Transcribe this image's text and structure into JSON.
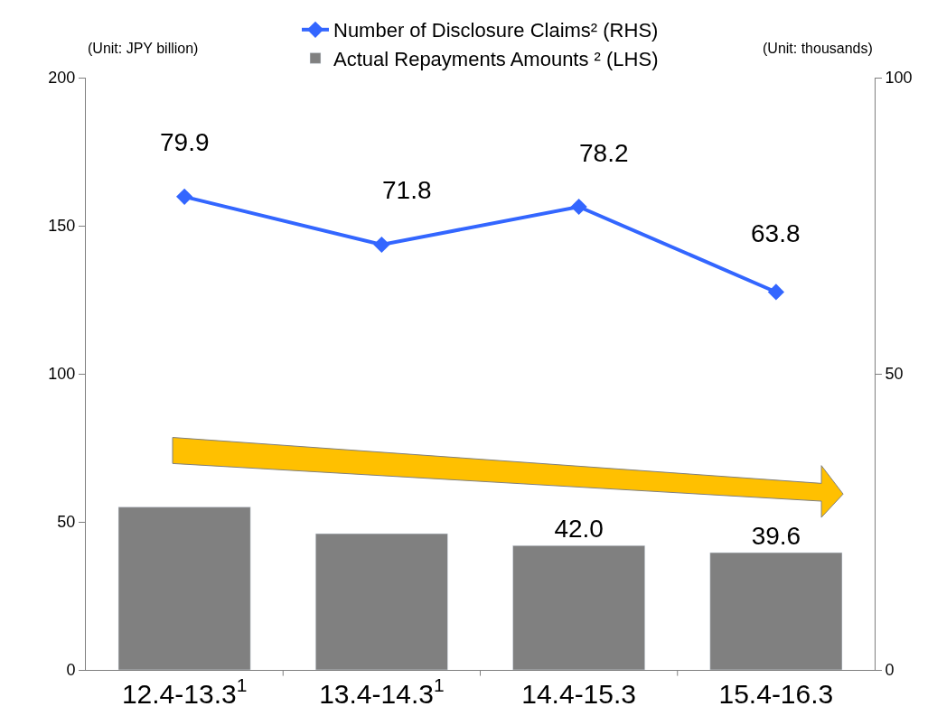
{
  "chart_data": {
    "type": "bar",
    "categories": [
      "12.4-13.3$^{1}$",
      "13.4-14.3$^{1}$",
      "14.4-15.3",
      "15.4-16.3"
    ],
    "series": [
      {
        "name": "Number of Disclosure Claims² (RHS)",
        "type": "line",
        "axis": "y2",
        "color": "#3366ff",
        "marker": "diamond",
        "values": [
          79.9,
          71.8,
          78.2,
          63.8
        ],
        "value_labels": [
          "79.9",
          "71.8",
          "78.2",
          "63.8"
        ]
      },
      {
        "name": "Actual Repayments Amounts ² (LHS)",
        "color": "#808080",
        "values": [
          55.0,
          46.0,
          42.0,
          39.6
        ],
        "value_labels": [
          null,
          null,
          "42.0",
          "39.6"
        ]
      }
    ],
    "annotations": [
      "(Unit: JPY billion)",
      "(Unit: thousands)"
    ],
    "ylim": [
      0,
      200
    ],
    "yticks": [
      0,
      50,
      100,
      150,
      200
    ],
    "y2lim": [
      0,
      100
    ],
    "y2ticks": [
      0,
      50,
      100
    ],
    "legend": "top",
    "grid": false
  }
}
